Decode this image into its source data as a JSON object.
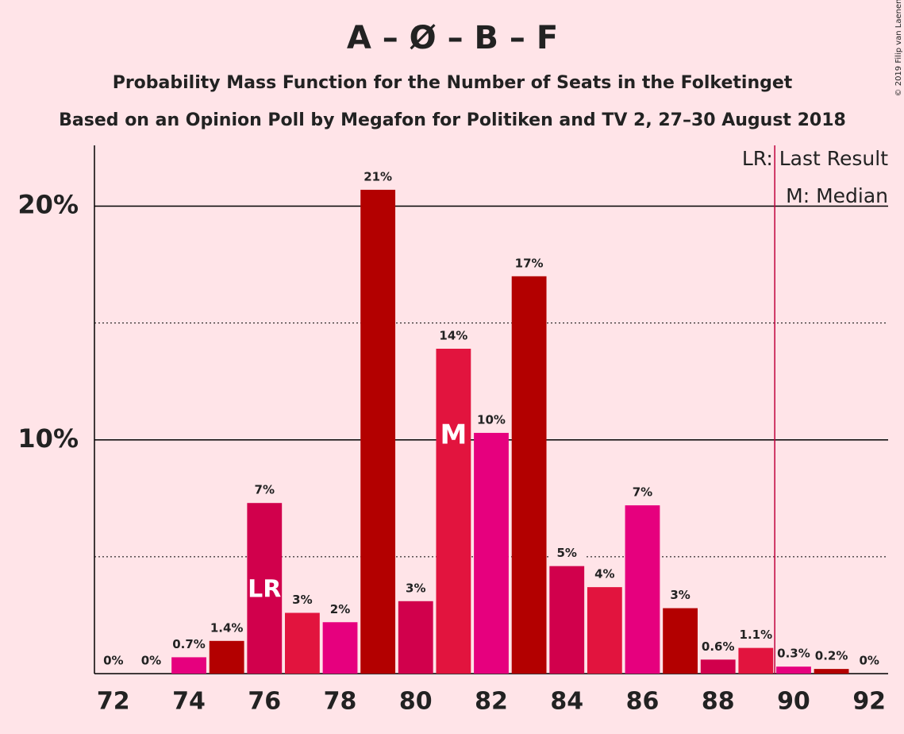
{
  "chart_data": {
    "type": "bar",
    "title": "A – Ø – B – F",
    "subtitle": "Probability Mass Function for the Number of Seats in the Folketinget",
    "subtitle2": "Based on an Opinion Poll by Megafon for Politiken and TV 2, 27–30 August 2018",
    "credit": "© 2019 Filip van Laenen",
    "categories": [
      72,
      null,
      74,
      null,
      76,
      null,
      78,
      null,
      80,
      null,
      82,
      null,
      84,
      null,
      86,
      null,
      88,
      null,
      90,
      null,
      92
    ],
    "values": [
      0,
      0,
      0.7,
      1.4,
      7.3,
      2.6,
      2.2,
      20.7,
      3.1,
      13.9,
      10.3,
      17.0,
      4.6,
      3.7,
      7.2,
      2.8,
      0.6,
      1.1,
      0.3,
      0.2,
      0
    ],
    "value_labels": [
      "0%",
      "0%",
      "0.7%",
      "1.4%",
      "7%",
      "3%",
      "2%",
      "21%",
      "3%",
      "14%",
      "10%",
      "17%",
      "5%",
      "4%",
      "7%",
      "3%",
      "0.6%",
      "1.1%",
      "0.3%",
      "0.2%",
      "0%"
    ],
    "colors": [
      "#d1004c",
      "#e2143e",
      "#e6007e",
      "#b30000"
    ],
    "ylim": [
      0,
      22.6
    ],
    "yticks": [
      {
        "value": 10,
        "label": "10%"
      },
      {
        "value": 20,
        "label": "20%"
      }
    ],
    "minor_yticks": [
      5,
      15
    ],
    "grid": true,
    "last_result": {
      "label": "LR",
      "index": 4,
      "legend": "LR: Last Result"
    },
    "median": {
      "label": "M",
      "index": 9,
      "legend": "M: Median"
    },
    "majority_index": 18,
    "majority_color": "#c0003c"
  }
}
